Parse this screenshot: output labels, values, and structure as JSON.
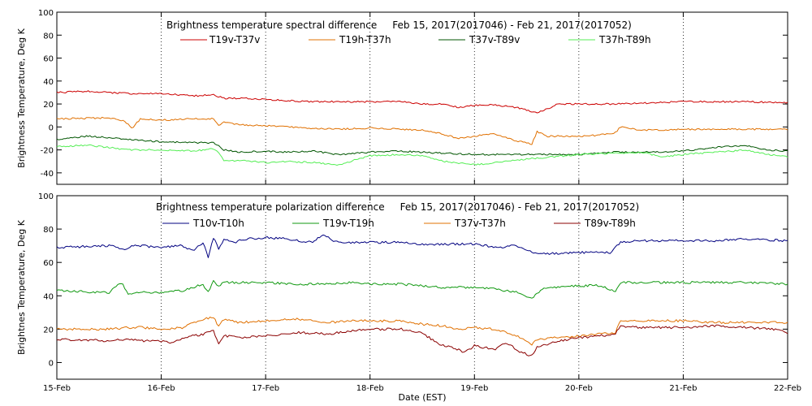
{
  "chart_data": [
    {
      "type": "line",
      "title": "Brightness temperature spectral difference     Feb 15, 2017(2017046) - Feb 21, 2017(2017052)",
      "ylabel": "Brightness Temperature, Deg K",
      "xlabel": "",
      "x_ticks": [],
      "x_ticklabels": [
        "15-Feb",
        "16-Feb",
        "17-Feb",
        "18-Feb",
        "19-Feb",
        "20-Feb",
        "21-Feb",
        "22-Feb"
      ],
      "xlim": [
        0,
        7
      ],
      "ylim": [
        -50,
        100
      ],
      "y_ticks": [
        -40,
        -20,
        0,
        20,
        40,
        60,
        80,
        100
      ],
      "grid": "vertical dotted lines at each day",
      "legend": "top, single row",
      "series": [
        {
          "name": "T19v-T37v",
          "color": "#cc0000",
          "x": [
            0,
            0.3,
            0.7,
            1.0,
            1.3,
            1.5,
            1.6,
            1.75,
            2.0,
            2.2,
            2.45,
            2.7,
            3.0,
            3.3,
            3.5,
            3.7,
            3.85,
            4.0,
            4.2,
            4.4,
            4.6,
            4.8,
            5.0,
            5.3,
            5.7,
            6.0,
            6.3,
            6.6,
            7.0
          ],
          "y": [
            30,
            31,
            29,
            29,
            27,
            28,
            25,
            25,
            24,
            23,
            22,
            22,
            22,
            22,
            20,
            20,
            17,
            19,
            19,
            17,
            12,
            20,
            20,
            20,
            21,
            22,
            22,
            22,
            21
          ]
        },
        {
          "name": "T19h-T37h",
          "color": "#e07000",
          "x": [
            0,
            0.5,
            0.65,
            0.72,
            0.8,
            1.0,
            1.3,
            1.5,
            1.55,
            1.6,
            1.75,
            2.0,
            2.2,
            2.45,
            2.7,
            3.0,
            3.3,
            3.5,
            3.65,
            3.85,
            4.0,
            4.2,
            4.4,
            4.55,
            4.6,
            4.7,
            5.0,
            5.2,
            5.35,
            5.4,
            5.6,
            6.0,
            6.3,
            6.6,
            7.0
          ],
          "y": [
            7,
            8,
            5,
            -1,
            7,
            6,
            7,
            7,
            1,
            4,
            2,
            1,
            0,
            -1,
            -2,
            -1,
            -2,
            -3,
            -5,
            -10,
            -8,
            -6,
            -12,
            -15,
            -4,
            -8,
            -8,
            -7,
            -5,
            0,
            -3,
            -2,
            -2,
            -2,
            -2
          ]
        },
        {
          "name": "T37v-T89v",
          "color": "#005500",
          "x": [
            0,
            0.3,
            0.7,
            1.0,
            1.5,
            1.55,
            1.6,
            1.75,
            2.0,
            2.2,
            2.45,
            2.7,
            3.0,
            3.3,
            3.5,
            4.0,
            4.5,
            5.0,
            5.3,
            5.7,
            6.0,
            6.3,
            6.6,
            6.8,
            7.0
          ],
          "y": [
            -11,
            -8,
            -11,
            -13,
            -14,
            -16,
            -20,
            -22,
            -21,
            -22,
            -21,
            -24,
            -22,
            -21,
            -22,
            -24,
            -24,
            -24,
            -22,
            -22,
            -21,
            -18,
            -16,
            -20,
            -21
          ]
        },
        {
          "name": "T37h-T89h",
          "color": "#55ee55",
          "x": [
            0,
            0.3,
            0.7,
            1.0,
            1.3,
            1.5,
            1.55,
            1.6,
            1.75,
            2.0,
            2.2,
            2.45,
            2.7,
            3.0,
            3.3,
            3.5,
            3.7,
            4.0,
            4.2,
            4.5,
            5.0,
            5.3,
            5.6,
            5.8,
            6.0,
            6.3,
            6.6,
            6.8,
            7.0
          ],
          "y": [
            -17,
            -16,
            -20,
            -20,
            -21,
            -19,
            -22,
            -30,
            -29,
            -31,
            -30,
            -31,
            -33,
            -25,
            -24,
            -25,
            -30,
            -33,
            -31,
            -28,
            -24,
            -23,
            -22,
            -26,
            -24,
            -22,
            -20,
            -24,
            -26
          ]
        }
      ]
    },
    {
      "type": "line",
      "title": "Brightness temperature polarization difference     Feb 15, 2017(2017046) - Feb 21, 2017(2017052)",
      "ylabel": "Brightnes Temperature, Deg K",
      "xlabel": "Date (EST)",
      "x_ticklabels": [
        "15-Feb",
        "16-Feb",
        "17-Feb",
        "18-Feb",
        "19-Feb",
        "20-Feb",
        "21-Feb",
        "22-Feb"
      ],
      "xlim": [
        0,
        7
      ],
      "ylim": [
        -10,
        100
      ],
      "y_ticks": [
        0,
        20,
        40,
        60,
        80,
        100
      ],
      "grid": "vertical dotted lines at each day",
      "legend": "top, single row",
      "series": [
        {
          "name": "T10v-T10h",
          "color": "#000080",
          "x": [
            0,
            0.5,
            0.65,
            0.72,
            0.8,
            1.0,
            1.2,
            1.3,
            1.4,
            1.45,
            1.5,
            1.55,
            1.6,
            1.7,
            1.8,
            2.0,
            2.2,
            2.45,
            2.55,
            2.65,
            2.75,
            3.0,
            3.3,
            3.5,
            4.0,
            4.2,
            4.4,
            4.55,
            4.6,
            5.0,
            5.3,
            5.4,
            5.6,
            6.0,
            6.3,
            6.6,
            7.0
          ],
          "y": [
            69,
            70,
            68,
            70,
            70,
            69,
            70,
            67,
            72,
            63,
            75,
            68,
            74,
            72,
            74,
            75,
            74,
            72,
            77,
            73,
            72,
            72,
            72,
            71,
            71,
            69,
            70,
            66,
            65,
            66,
            66,
            72,
            73,
            73,
            73,
            74,
            73
          ]
        },
        {
          "name": "T19v-T19h",
          "color": "#119911",
          "x": [
            0,
            0.5,
            0.62,
            0.68,
            0.75,
            0.8,
            1.0,
            1.2,
            1.3,
            1.4,
            1.45,
            1.5,
            1.55,
            1.6,
            1.7,
            2.0,
            2.3,
            2.6,
            2.8,
            3.0,
            3.3,
            3.5,
            3.7,
            4.0,
            4.2,
            4.4,
            4.55,
            4.6,
            4.7,
            5.0,
            5.2,
            5.35,
            5.4,
            5.6,
            6.0,
            6.3,
            6.6,
            7.0
          ],
          "y": [
            43,
            42,
            48,
            41,
            42,
            42,
            42,
            43,
            45,
            47,
            42,
            49,
            46,
            48,
            48,
            48,
            47,
            47,
            48,
            47,
            47,
            46,
            45,
            45,
            44,
            42,
            38,
            42,
            45,
            46,
            46,
            43,
            48,
            48,
            48,
            48,
            48,
            47
          ]
        },
        {
          "name": "T37v-T37h",
          "color": "#e07000",
          "x": [
            0,
            0.5,
            0.7,
            0.8,
            1.0,
            1.2,
            1.3,
            1.4,
            1.5,
            1.55,
            1.6,
            1.75,
            2.0,
            2.3,
            2.6,
            2.8,
            3.0,
            3.3,
            3.5,
            3.7,
            3.85,
            4.0,
            4.2,
            4.4,
            4.55,
            4.6,
            4.8,
            5.0,
            5.2,
            5.35,
            5.4,
            5.6,
            6.0,
            6.3,
            6.6,
            7.0
          ],
          "y": [
            20,
            20,
            21,
            21,
            20,
            21,
            24,
            26,
            27,
            22,
            26,
            24,
            25,
            26,
            24,
            25,
            25,
            25,
            23,
            22,
            20,
            21,
            20,
            16,
            11,
            14,
            15,
            16,
            17,
            18,
            25,
            25,
            25,
            24,
            24,
            24
          ]
        },
        {
          "name": "T89v-T89h",
          "color": "#8b0000",
          "x": [
            0,
            0.5,
            0.7,
            0.8,
            1.0,
            1.1,
            1.3,
            1.4,
            1.5,
            1.55,
            1.6,
            1.75,
            2.0,
            2.3,
            2.6,
            2.8,
            3.0,
            3.3,
            3.5,
            3.65,
            3.8,
            3.9,
            4.0,
            4.2,
            4.3,
            4.45,
            4.55,
            4.6,
            4.8,
            5.0,
            5.2,
            5.35,
            5.4,
            5.6,
            6.0,
            6.3,
            6.6,
            6.85,
            7.0
          ],
          "y": [
            14,
            13,
            14,
            13,
            13,
            12,
            16,
            17,
            19,
            11,
            16,
            15,
            16,
            18,
            17,
            19,
            20,
            20,
            18,
            11,
            9,
            6,
            10,
            8,
            12,
            6,
            4,
            9,
            13,
            15,
            16,
            17,
            22,
            21,
            21,
            22,
            21,
            20,
            18
          ]
        }
      ]
    }
  ]
}
